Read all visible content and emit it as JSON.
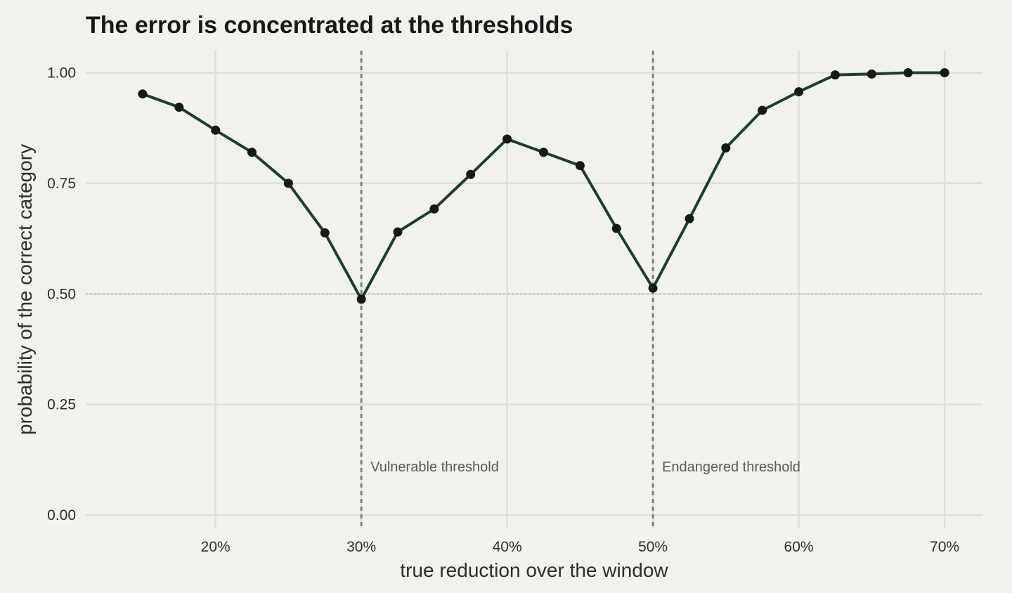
{
  "chart_data": {
    "type": "line",
    "title": "The error is concentrated at the thresholds",
    "xlabel": "true reduction over the window",
    "ylabel": "probability of the correct category",
    "xlim": [
      0.111,
      0.726
    ],
    "ylim": [
      -0.03,
      1.05
    ],
    "x_ticks": [
      0.2,
      0.3,
      0.4,
      0.5,
      0.6,
      0.7
    ],
    "x_tick_labels": [
      "20%",
      "30%",
      "40%",
      "50%",
      "60%",
      "70%"
    ],
    "y_ticks": [
      0,
      0.25,
      0.5,
      0.75,
      1.0
    ],
    "y_tick_labels": [
      "0.00",
      "0.25",
      "0.50",
      "0.75",
      "1.00"
    ],
    "grid": true,
    "reference_lines": [
      {
        "axis": "y",
        "value": 0.5,
        "style": "dotted"
      },
      {
        "axis": "x",
        "value": 0.3,
        "style": "dashed",
        "label": "Vulnerable threshold"
      },
      {
        "axis": "x",
        "value": 0.5,
        "style": "dashed",
        "label": "Endangered threshold"
      }
    ],
    "series": [
      {
        "color": "#1f3d2e",
        "x": [
          0.15,
          0.175,
          0.2,
          0.225,
          0.25,
          0.275,
          0.3,
          0.325,
          0.35,
          0.375,
          0.4,
          0.425,
          0.45,
          0.475,
          0.5,
          0.525,
          0.55,
          0.575,
          0.6,
          0.625,
          0.65,
          0.675,
          0.7
        ],
        "y": [
          0.952,
          0.922,
          0.87,
          0.82,
          0.75,
          0.638,
          0.488,
          0.64,
          0.692,
          0.77,
          0.85,
          0.82,
          0.79,
          0.648,
          0.513,
          0.67,
          0.83,
          0.915,
          0.957,
          0.995,
          0.997,
          1.0,
          1.0
        ]
      }
    ]
  }
}
